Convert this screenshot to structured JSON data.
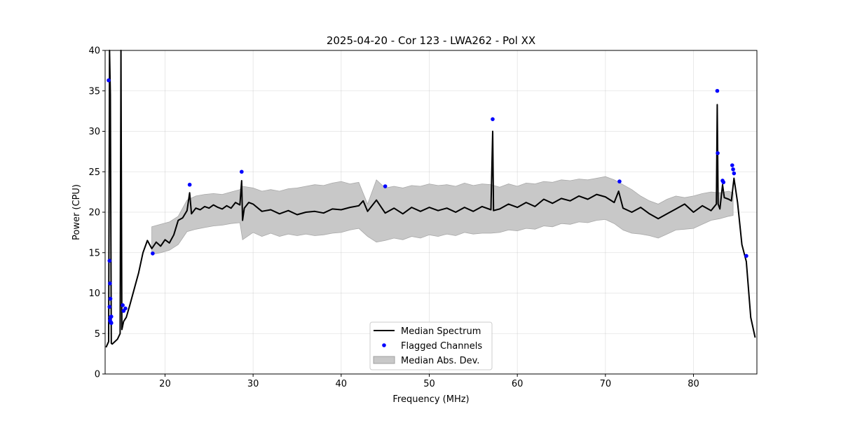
{
  "chart_data": {
    "type": "line",
    "title": "2025-04-20 - Cor 123 - LWA262 - Pol XX",
    "xlabel": "Frequency (MHz)",
    "ylabel": "Power (CPU)",
    "xlim": [
      13.2,
      87.2
    ],
    "ylim": [
      0,
      40
    ],
    "xticks": [
      20,
      30,
      40,
      50,
      60,
      70,
      80
    ],
    "yticks": [
      0,
      5,
      10,
      15,
      20,
      25,
      30,
      35,
      40
    ],
    "grid": true,
    "legend_position": "lower-center",
    "legend": [
      {
        "label": "Median Spectrum",
        "kind": "line",
        "color": "#000000"
      },
      {
        "label": "Flagged Channels",
        "kind": "marker",
        "color": "#0000ff"
      },
      {
        "label": "Median Abs. Dev.",
        "kind": "band",
        "color": "#c8c8c8"
      }
    ],
    "series": [
      {
        "name": "Median Spectrum",
        "color": "#000000",
        "x": [
          13.3,
          13.6,
          13.7,
          13.8,
          13.9,
          14.0,
          14.2,
          14.6,
          14.9,
          15.0,
          15.1,
          15.3,
          15.6,
          16.0,
          16.5,
          17.0,
          17.5,
          18.0,
          18.5,
          19.0,
          19.5,
          20.0,
          20.5,
          21.0,
          21.5,
          22.0,
          22.5,
          22.8,
          23.0,
          23.5,
          24.0,
          24.5,
          25.0,
          25.5,
          26.0,
          26.5,
          27.0,
          27.5,
          28.0,
          28.5,
          28.7,
          28.8,
          29.0,
          29.5,
          30.0,
          31.0,
          32.0,
          33.0,
          34.0,
          35.0,
          36.0,
          37.0,
          38.0,
          39.0,
          40.0,
          41.0,
          42.0,
          42.5,
          43.0,
          44.0,
          45.0,
          46.0,
          47.0,
          48.0,
          49.0,
          50.0,
          51.0,
          52.0,
          53.0,
          54.0,
          55.0,
          56.0,
          57.0,
          57.2,
          57.3,
          58.0,
          59.0,
          60.0,
          61.0,
          62.0,
          63.0,
          64.0,
          65.0,
          66.0,
          67.0,
          68.0,
          69.0,
          70.0,
          71.0,
          71.5,
          72.0,
          73.0,
          74.0,
          75.0,
          76.0,
          77.0,
          78.0,
          79.0,
          80.0,
          81.0,
          82.0,
          82.6,
          82.7,
          82.8,
          83.0,
          83.3,
          83.5,
          84.0,
          84.3,
          84.6,
          85.0,
          85.5,
          86.0,
          86.5,
          87.0
        ],
        "y": [
          3.3,
          4.0,
          40.0,
          34.5,
          3.8,
          3.7,
          3.9,
          4.3,
          5.0,
          40.0,
          5.5,
          6.5,
          7.0,
          8.5,
          10.5,
          12.5,
          15.0,
          16.5,
          15.5,
          16.3,
          15.8,
          16.6,
          16.2,
          17.2,
          19.0,
          19.3,
          20.2,
          22.4,
          19.8,
          20.5,
          20.3,
          20.7,
          20.5,
          20.9,
          20.6,
          20.4,
          20.8,
          20.5,
          21.2,
          20.9,
          23.9,
          19.0,
          20.5,
          21.2,
          21.0,
          20.1,
          20.3,
          19.8,
          20.2,
          19.7,
          20.0,
          20.1,
          19.9,
          20.4,
          20.3,
          20.6,
          20.8,
          21.4,
          20.1,
          21.5,
          19.9,
          20.5,
          19.8,
          20.6,
          20.1,
          20.6,
          20.2,
          20.5,
          20.0,
          20.6,
          20.1,
          20.7,
          20.3,
          30.0,
          20.2,
          20.4,
          21.0,
          20.6,
          21.2,
          20.7,
          21.6,
          21.1,
          21.7,
          21.4,
          22.0,
          21.6,
          22.2,
          21.9,
          21.2,
          22.6,
          20.5,
          20.0,
          20.6,
          19.8,
          19.2,
          19.8,
          20.4,
          21.0,
          20.0,
          20.8,
          20.2,
          21.0,
          33.3,
          21.0,
          20.4,
          23.4,
          21.8,
          21.6,
          21.4,
          24.2,
          21.2,
          16.0,
          13.9,
          7.0,
          4.5
        ]
      },
      {
        "name": "Median Abs. Dev.",
        "color": "#c8c8c8",
        "x": [
          18.5,
          19.5,
          20.5,
          21.5,
          22.5,
          23.5,
          24.5,
          25.5,
          26.5,
          27.5,
          28.5,
          28.8,
          30.0,
          31.0,
          32.0,
          33.0,
          34.0,
          35.0,
          36.0,
          37.0,
          38.0,
          39.0,
          40.0,
          41.0,
          42.0,
          43.0,
          44.0,
          45.0,
          46.0,
          47.0,
          48.0,
          49.0,
          50.0,
          51.0,
          52.0,
          53.0,
          54.0,
          55.0,
          56.0,
          57.0,
          58.0,
          59.0,
          60.0,
          61.0,
          62.0,
          63.0,
          64.0,
          65.0,
          66.0,
          67.0,
          68.0,
          69.0,
          70.0,
          71.0,
          72.0,
          73.0,
          74.0,
          75.0,
          76.0,
          77.0,
          78.0,
          79.0,
          80.0,
          81.0,
          82.0,
          83.0,
          84.0,
          84.5
        ],
        "upper": [
          18.2,
          18.5,
          18.8,
          19.5,
          21.5,
          22.0,
          22.2,
          22.3,
          22.2,
          22.5,
          22.8,
          23.2,
          23.0,
          22.6,
          22.8,
          22.6,
          22.9,
          23.0,
          23.2,
          23.4,
          23.3,
          23.6,
          23.8,
          23.5,
          23.7,
          21.0,
          24.0,
          23.0,
          23.2,
          23.0,
          23.3,
          23.2,
          23.5,
          23.3,
          23.4,
          23.2,
          23.6,
          23.3,
          23.5,
          23.4,
          23.1,
          23.5,
          23.2,
          23.6,
          23.5,
          23.8,
          23.7,
          24.0,
          23.9,
          24.1,
          24.0,
          24.2,
          24.4,
          24.0,
          23.4,
          22.8,
          22.0,
          21.4,
          21.0,
          21.6,
          22.0,
          21.8,
          22.0,
          22.3,
          22.5,
          22.4,
          22.6,
          22.4
        ],
        "lower": [
          14.8,
          15.0,
          15.3,
          16.0,
          17.6,
          17.9,
          18.1,
          18.3,
          18.4,
          18.6,
          18.7,
          16.6,
          17.5,
          17.0,
          17.4,
          17.0,
          17.3,
          17.1,
          17.3,
          17.1,
          17.2,
          17.4,
          17.5,
          17.8,
          18.0,
          17.0,
          16.3,
          16.5,
          16.8,
          16.6,
          17.0,
          16.8,
          17.2,
          17.0,
          17.3,
          17.1,
          17.5,
          17.3,
          17.4,
          17.4,
          17.5,
          17.8,
          17.7,
          18.0,
          17.9,
          18.3,
          18.2,
          18.6,
          18.5,
          18.8,
          18.7,
          19.0,
          19.1,
          18.6,
          17.8,
          17.4,
          17.3,
          17.1,
          16.8,
          17.3,
          17.8,
          17.9,
          18.0,
          18.5,
          19.0,
          19.2,
          19.5,
          19.6
        ]
      },
      {
        "name": "Flagged Channels",
        "color": "#0000ff",
        "x": [
          13.6,
          13.7,
          13.75,
          13.8,
          13.7,
          13.9,
          13.8,
          13.75,
          13.85,
          13.9,
          15.2,
          15.3,
          15.5,
          18.6,
          22.8,
          28.7,
          45.0,
          57.2,
          71.6,
          82.7,
          82.75,
          83.3,
          83.4,
          84.4,
          84.5,
          84.6,
          86.0
        ],
        "y": [
          36.3,
          14.0,
          11.2,
          9.3,
          8.3,
          7.1,
          7.0,
          6.6,
          6.4,
          6.3,
          8.5,
          7.8,
          8.1,
          14.9,
          23.4,
          25.0,
          23.2,
          31.5,
          23.8,
          35.0,
          27.3,
          23.9,
          23.7,
          25.8,
          25.3,
          24.8,
          14.6
        ]
      }
    ]
  }
}
